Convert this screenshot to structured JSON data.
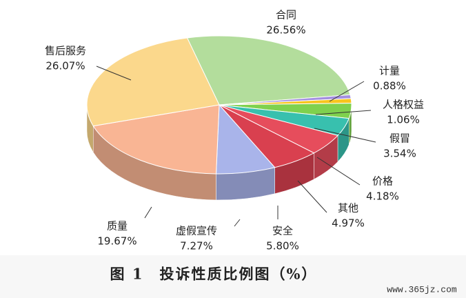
{
  "chart_data": {
    "type": "pie3d",
    "title": "图 1　投诉性质比例图（%）",
    "categories": [
      "合同",
      "计量",
      "人格权益",
      "假冒",
      "价格",
      "其他",
      "安全",
      "虚假宣传",
      "质量",
      "售后服务"
    ],
    "values": [
      26.56,
      0.88,
      1.06,
      3.54,
      4.18,
      4.97,
      5.8,
      7.27,
      19.67,
      26.07
    ],
    "value_labels": [
      "26.56%",
      "0.88%",
      "1.06%",
      "3.54%",
      "4.18%",
      "4.97%",
      "5.80%",
      "7.27%",
      "19.67%",
      "26.07%"
    ],
    "colors": [
      "#b3dd9c",
      "#a48fe0",
      "#f7c51e",
      "#7fd14e",
      "#38c0ae",
      "#e64d5c",
      "#d9404f",
      "#a9b4ea",
      "#f9b594",
      "#fbd88c"
    ]
  },
  "watermark": "www.365jz.com"
}
